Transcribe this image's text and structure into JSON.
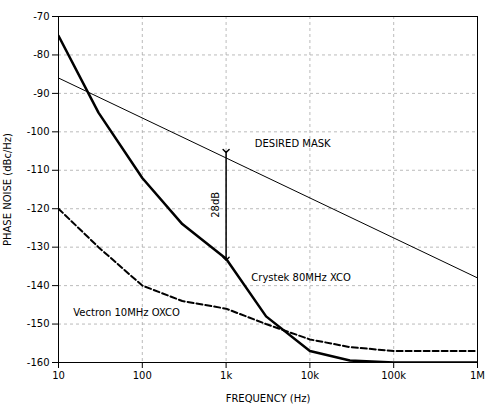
{
  "chart_data": {
    "type": "line",
    "xlabel": "FREQUENCY (Hz)",
    "ylabel": "PHASE NOISE (dBc/Hz)",
    "log": "x",
    "grid": true,
    "xlim": [
      10,
      1000000
    ],
    "ylim": [
      -160,
      -70
    ],
    "xticks": [
      10,
      100,
      {
        "value": 1000,
        "label": "1k"
      },
      {
        "value": 10000,
        "label": "10k"
      },
      {
        "value": 100000,
        "label": "100k"
      },
      {
        "value": 1000000,
        "label": "1M"
      }
    ],
    "yticks": [
      -160,
      -150,
      -140,
      -130,
      -120,
      -110,
      -100,
      -90,
      -80,
      -70
    ],
    "series": [
      {
        "name": "DESIRED MASK",
        "color": "#000000",
        "line_style": "solid",
        "x": [
          10,
          1000000
        ],
        "values": [
          -86,
          -138
        ]
      },
      {
        "name": "Crystek 80MHz XCO",
        "color": "#000000",
        "line_style": "solid",
        "x": [
          10,
          30,
          100,
          300,
          1000,
          3000,
          10000,
          30000,
          100000,
          300000,
          1000000
        ],
        "values": [
          -75,
          -95,
          -112,
          -124,
          -133,
          -148,
          -157,
          -159.5,
          -160,
          -160,
          -160
        ]
      },
      {
        "name": "Vectron 10MHz OXCO",
        "color": "#000000",
        "line_style": "dashed",
        "x": [
          10,
          30,
          100,
          300,
          1000,
          3000,
          10000,
          30000,
          100000,
          300000,
          1000000
        ],
        "values": [
          -120,
          -130,
          -140,
          -144,
          -146,
          -150,
          -154,
          -156,
          -157,
          -157,
          -157
        ]
      }
    ],
    "annotations": [
      {
        "text": "DESIRED MASK",
        "x": 2200,
        "y": -104
      },
      {
        "text": "Crystek 80MHz XCO",
        "x": 2000,
        "y": -137
      },
      {
        "text": "Vectron 10MHz OXCO",
        "x": 15,
        "y": -146
      }
    ],
    "arrow": {
      "x": 1000,
      "y1": -105,
      "y2": -133,
      "label": "28dB"
    }
  }
}
